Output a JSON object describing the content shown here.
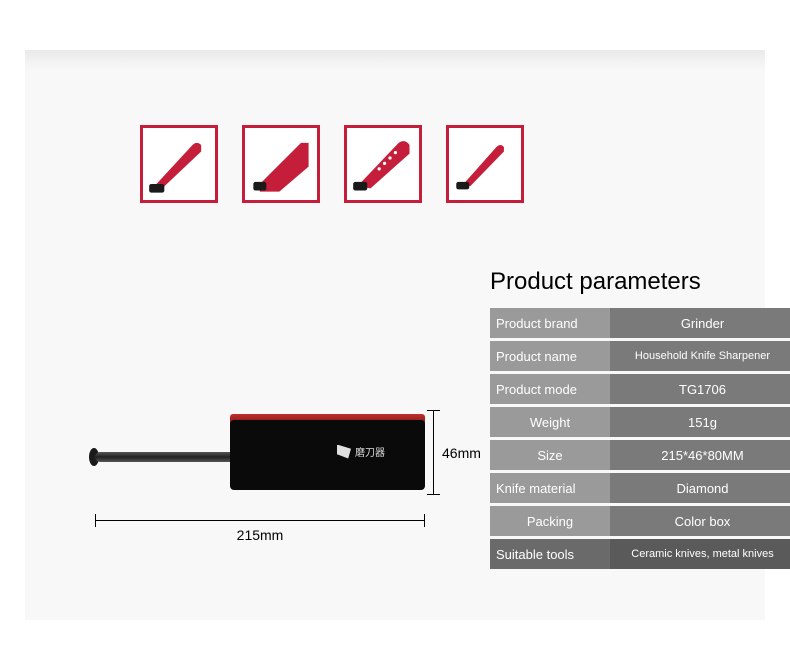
{
  "title": "Product parameters",
  "icons": {
    "accent": "#c41e3a",
    "items": [
      "chef-knife",
      "cleaver",
      "santoku",
      "paring-knife"
    ]
  },
  "spec": {
    "rows": [
      {
        "label": "Product brand",
        "value": "Grinder",
        "lab_align": "left",
        "val_size": "n",
        "hl": false
      },
      {
        "label": "Product name",
        "value": "Household Knife Sharpener",
        "lab_align": "left",
        "val_size": "sm",
        "hl": false
      },
      {
        "label": "Product mode",
        "value": "TG1706",
        "lab_align": "left",
        "val_size": "n",
        "hl": false
      },
      {
        "label": "Weight",
        "value": "151g",
        "lab_align": "center",
        "val_size": "n",
        "hl": false
      },
      {
        "label": "Size",
        "value": "215*46*80MM",
        "lab_align": "center",
        "val_size": "n",
        "hl": false
      },
      {
        "label": "Knife material",
        "value": "Diamond",
        "lab_align": "left",
        "val_size": "n",
        "hl": false
      },
      {
        "label": "Packing",
        "value": "Color box",
        "lab_align": "center",
        "val_size": "n",
        "hl": false
      },
      {
        "label": "Suitable tools",
        "value": "Ceramic knives, metal knives",
        "lab_align": "left",
        "val_size": "sm",
        "hl": true
      }
    ],
    "label_bg": "#9a9a9a",
    "value_bg": "#7a7a7a"
  },
  "dims": {
    "width": "215mm",
    "height": "46mm"
  },
  "product": {
    "logo_text": "磨刀器"
  }
}
